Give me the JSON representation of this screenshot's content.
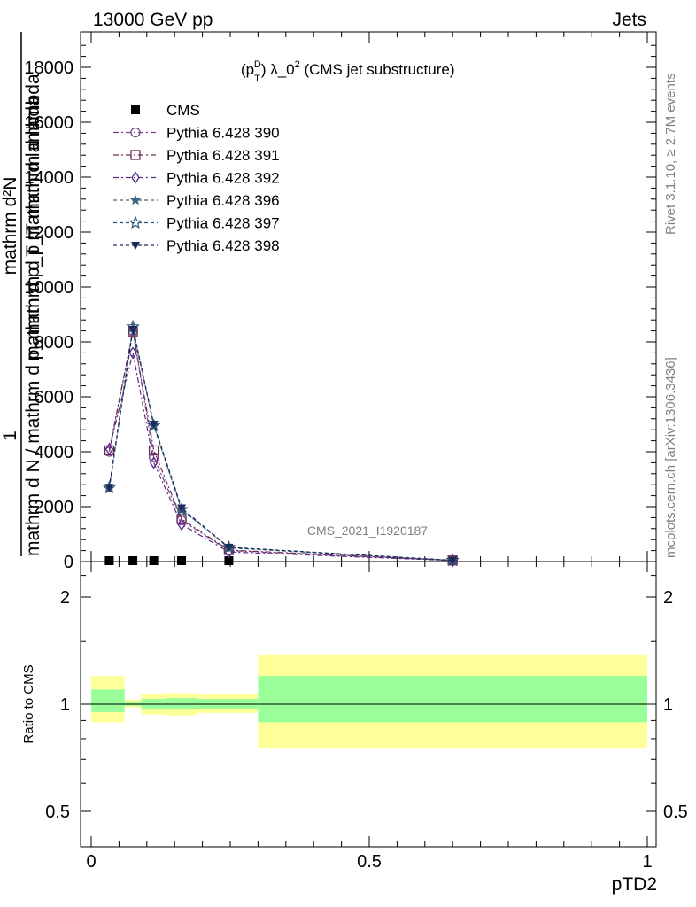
{
  "header": {
    "left": "13000 GeV pp",
    "right": "Jets"
  },
  "side": {
    "events": "Rivet 3.1.10, ≥ 2.7M events",
    "source": "mcplots.cern.ch [arXiv:1306.3436]"
  },
  "watermark": "CMS_2021_I1920187",
  "main_title": {
    "base": "(p",
    "sub": "T",
    "sup": "D",
    "rest": ") λ_0",
    "sup2": "2",
    "sup3": "2",
    "tail": " (CMS jet substructure)"
  },
  "ylabel_main": {
    "numerator_1": "1",
    "denominator": "mathrm d N / mathrm d p_mathrm d p_T mathrm d lambda",
    "numerator_2": "mathrm d²N",
    "denominator_2": "mathrm d p_T mathrm d lambda"
  },
  "ylabel_ratio": "Ratio to CMS",
  "xlabel": "pTD2",
  "colors": {
    "yellow_band": "#ffff99",
    "green_band": "#99ff99",
    "s390": "#7b3f8c",
    "s391": "#6b2e4f",
    "s392": "#5a2a8a",
    "s396": "#3e6680",
    "s397": "#2f5577",
    "s398": "#1c2a5a"
  },
  "chart_data": [
    {
      "type": "line",
      "x_ticks": [
        "0",
        "0.5",
        "1"
      ],
      "y_ticks": [
        "0",
        "2000",
        "4000",
        "6000",
        "8000",
        "10000",
        "12000",
        "14000",
        "16000",
        "18000"
      ],
      "xlim": [
        -0.02,
        1.02
      ],
      "ylim": [
        0,
        19200
      ],
      "legend_position": "top-left",
      "series": [
        {
          "name": "CMS",
          "marker": "square-filled",
          "color": "#000000",
          "x": [
            0.0325,
            0.075,
            0.1125,
            0.1625,
            0.2475
          ],
          "y": [
            0,
            0,
            0,
            0,
            0
          ]
        },
        {
          "name": "Pythia 6.428 390",
          "marker": "circle-open",
          "color_key": "s390",
          "dash": "6,3,2,3",
          "x": [
            0.0325,
            0.075,
            0.1125,
            0.1625,
            0.2475,
            0.65
          ],
          "y": [
            4000,
            8400,
            3800,
            1500,
            400,
            40
          ]
        },
        {
          "name": "Pythia 6.428 391",
          "marker": "square-open",
          "color_key": "s391",
          "dash": "6,3,2,3",
          "x": [
            0.0325,
            0.075,
            0.1125,
            0.1625,
            0.2475,
            0.65
          ],
          "y": [
            4050,
            8380,
            4050,
            1550,
            420,
            40
          ]
        },
        {
          "name": "Pythia 6.428 392",
          "marker": "diamond-open",
          "color_key": "s392",
          "dash": "6,3,2,3",
          "x": [
            0.0325,
            0.075,
            0.1125,
            0.1625,
            0.2475,
            0.65
          ],
          "y": [
            4100,
            7600,
            3600,
            1350,
            350,
            35
          ]
        },
        {
          "name": "Pythia 6.428 396",
          "marker": "star-filled",
          "color_key": "s396",
          "dash": "4,3",
          "x": [
            0.0325,
            0.075,
            0.1125,
            0.1625,
            0.2475,
            0.65
          ],
          "y": [
            2650,
            8500,
            4950,
            1900,
            500,
            45
          ]
        },
        {
          "name": "Pythia 6.428 397",
          "marker": "star-open",
          "color_key": "s397",
          "dash": "4,3",
          "x": [
            0.0325,
            0.075,
            0.1125,
            0.1625,
            0.2475,
            0.65
          ],
          "y": [
            2700,
            8550,
            4950,
            1900,
            520,
            45
          ]
        },
        {
          "name": "Pythia 6.428 398",
          "marker": "triangle-down-filled",
          "color_key": "s398",
          "dash": "4,3",
          "x": [
            0.0325,
            0.075,
            0.1125,
            0.1625,
            0.2475,
            0.65
          ],
          "y": [
            2700,
            8450,
            5000,
            1950,
            520,
            45
          ]
        }
      ]
    },
    {
      "type": "area",
      "ylabel": "Ratio to CMS",
      "y_scale": "log",
      "y_ticks": [
        "0.5",
        "1",
        "2"
      ],
      "ylim": [
        0.4,
        2.4
      ],
      "reference_line": 1,
      "bins": [
        {
          "x0": 0.0,
          "x1": 0.06,
          "yellow": [
            0.89,
            1.2
          ],
          "green": [
            0.95,
            1.1
          ]
        },
        {
          "x0": 0.06,
          "x1": 0.09,
          "yellow": [
            0.98,
            1.03
          ],
          "green": [
            0.99,
            1.015
          ]
        },
        {
          "x0": 0.09,
          "x1": 0.135,
          "yellow": [
            0.935,
            1.07
          ],
          "green": [
            0.965,
            1.035
          ]
        },
        {
          "x0": 0.135,
          "x1": 0.19,
          "yellow": [
            0.93,
            1.075
          ],
          "green": [
            0.965,
            1.04
          ]
        },
        {
          "x0": 0.19,
          "x1": 0.3,
          "yellow": [
            0.945,
            1.065
          ],
          "green": [
            0.97,
            1.035
          ]
        },
        {
          "x0": 0.3,
          "x1": 1.0,
          "yellow": [
            0.75,
            1.38
          ],
          "green": [
            0.89,
            1.2
          ]
        }
      ]
    }
  ]
}
